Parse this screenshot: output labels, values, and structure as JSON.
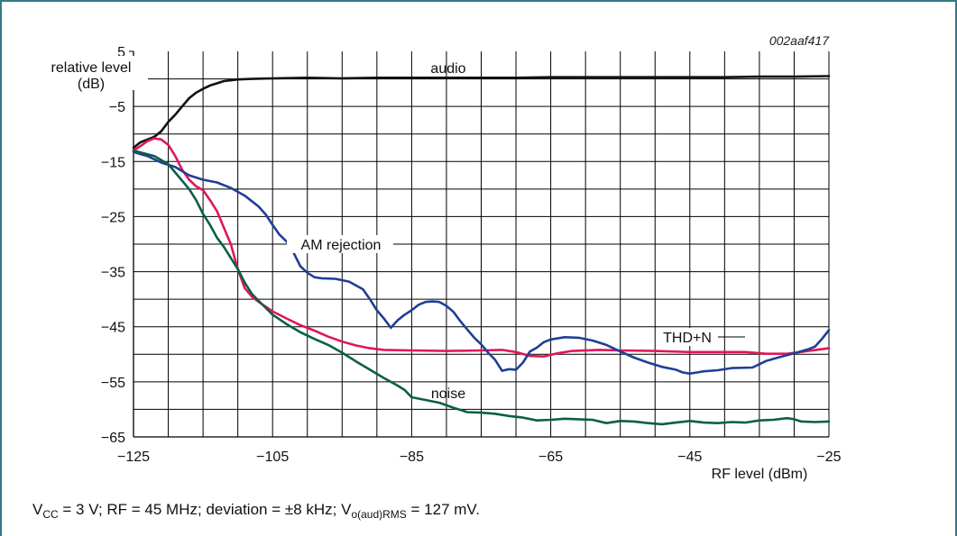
{
  "chart_data": {
    "type": "line",
    "figure_code": "002aaf417",
    "ylabel": "relative level (dB)",
    "ylabel_lines": [
      "relative level",
      "(dB)"
    ],
    "xlabel": "RF level (dBm)",
    "xlim": [
      -125,
      -25
    ],
    "ylim": [
      -65,
      5
    ],
    "x_ticks": [
      -125,
      -105,
      -85,
      -65,
      -45,
      -25
    ],
    "x_tick_labels": [
      "−125",
      "−105",
      "−85",
      "−65",
      "−45",
      "−25"
    ],
    "y_ticks": [
      5,
      -5,
      -15,
      -25,
      -35,
      -45,
      -55,
      -65
    ],
    "y_tick_labels": [
      "5",
      "−5",
      "−15",
      "−25",
      "−35",
      "−45",
      "−55",
      "−65"
    ],
    "grid": true,
    "series": [
      {
        "name": "audio",
        "color": "#111111",
        "points": [
          [
            -125,
            -12.5
          ],
          [
            -124,
            -11.5
          ],
          [
            -122,
            -10.5
          ],
          [
            -121,
            -9.5
          ],
          [
            -120,
            -7.8
          ],
          [
            -119,
            -6.5
          ],
          [
            -118,
            -5
          ],
          [
            -117,
            -3.5
          ],
          [
            -116,
            -2.5
          ],
          [
            -115,
            -1.8
          ],
          [
            -114,
            -1.2
          ],
          [
            -113,
            -0.8
          ],
          [
            -112,
            -0.4
          ],
          [
            -110,
            -0.1
          ],
          [
            -108,
            0
          ],
          [
            -105,
            0.1
          ],
          [
            -100,
            0.2
          ],
          [
            -95,
            0.1
          ],
          [
            -90,
            0.2
          ],
          [
            -85,
            0.2
          ],
          [
            -80,
            0.2
          ],
          [
            -75,
            0.2
          ],
          [
            -70,
            0.2
          ],
          [
            -65,
            0.3
          ],
          [
            -60,
            0.3
          ],
          [
            -55,
            0.3
          ],
          [
            -50,
            0.3
          ],
          [
            -45,
            0.3
          ],
          [
            -40,
            0.3
          ],
          [
            -35,
            0.4
          ],
          [
            -30,
            0.4
          ],
          [
            -25,
            0.5
          ]
        ]
      },
      {
        "name": "THD+N",
        "color": "#e0165b",
        "points": [
          [
            -125,
            -13
          ],
          [
            -124,
            -12.2
          ],
          [
            -123,
            -11.3
          ],
          [
            -122,
            -10.8
          ],
          [
            -121,
            -11
          ],
          [
            -120,
            -12
          ],
          [
            -119,
            -14
          ],
          [
            -118,
            -16.5
          ],
          [
            -117,
            -18.3
          ],
          [
            -116,
            -19.5
          ],
          [
            -115,
            -20.2
          ],
          [
            -114,
            -22
          ],
          [
            -113,
            -24
          ],
          [
            -112,
            -27
          ],
          [
            -111,
            -30
          ],
          [
            -110,
            -34.5
          ],
          [
            -109,
            -38
          ],
          [
            -108,
            -39.5
          ],
          [
            -107,
            -40.5
          ],
          [
            -105,
            -42.2
          ],
          [
            -103,
            -43.5
          ],
          [
            -101,
            -44.7
          ],
          [
            -99,
            -45.7
          ],
          [
            -97,
            -46.8
          ],
          [
            -95,
            -47.7
          ],
          [
            -93,
            -48.4
          ],
          [
            -91,
            -48.9
          ],
          [
            -89,
            -49.2
          ],
          [
            -85,
            -49.3
          ],
          [
            -80,
            -49.4
          ],
          [
            -75,
            -49.3
          ],
          [
            -72,
            -49.2
          ],
          [
            -70,
            -49.6
          ],
          [
            -68,
            -50.3
          ],
          [
            -66,
            -50.4
          ],
          [
            -64,
            -49.8
          ],
          [
            -62,
            -49.4
          ],
          [
            -58,
            -49.2
          ],
          [
            -55,
            -49.3
          ],
          [
            -50,
            -49.4
          ],
          [
            -45,
            -49.6
          ],
          [
            -40,
            -49.6
          ],
          [
            -37,
            -49.6
          ],
          [
            -34,
            -49.9
          ],
          [
            -31,
            -49.9
          ],
          [
            -28,
            -49.4
          ],
          [
            -25,
            -48.9
          ]
        ]
      },
      {
        "name": "AM rejection",
        "color": "#1f3f96",
        "points": [
          [
            -125,
            -13.3
          ],
          [
            -123,
            -14
          ],
          [
            -121,
            -15.2
          ],
          [
            -119,
            -16
          ],
          [
            -117,
            -17.5
          ],
          [
            -115,
            -18.3
          ],
          [
            -113,
            -18.8
          ],
          [
            -111,
            -19.8
          ],
          [
            -109,
            -21.2
          ],
          [
            -107,
            -23.2
          ],
          [
            -106,
            -24.6
          ],
          [
            -105,
            -26.5
          ],
          [
            -104,
            -28.3
          ],
          [
            -103,
            -29.5
          ],
          [
            -102,
            -31.5
          ],
          [
            -101,
            -34
          ],
          [
            -100,
            -35.2
          ],
          [
            -99,
            -36
          ],
          [
            -98,
            -36.2
          ],
          [
            -96,
            -36.3
          ],
          [
            -94,
            -36.8
          ],
          [
            -92,
            -38.2
          ],
          [
            -91,
            -40
          ],
          [
            -90,
            -42
          ],
          [
            -89,
            -43.5
          ],
          [
            -88,
            -45.2
          ],
          [
            -87,
            -43.8
          ],
          [
            -86,
            -42.8
          ],
          [
            -85,
            -42
          ],
          [
            -84,
            -41
          ],
          [
            -83,
            -40.5
          ],
          [
            -82,
            -40.4
          ],
          [
            -81,
            -40.5
          ],
          [
            -80,
            -41.2
          ],
          [
            -79,
            -42.3
          ],
          [
            -78,
            -44
          ],
          [
            -77,
            -45.5
          ],
          [
            -76,
            -47
          ],
          [
            -75,
            -48.2
          ],
          [
            -74,
            -49.7
          ],
          [
            -73,
            -51
          ],
          [
            -72,
            -53
          ],
          [
            -71,
            -52.7
          ],
          [
            -70,
            -52.8
          ],
          [
            -69,
            -51.5
          ],
          [
            -68,
            -49.5
          ],
          [
            -67,
            -48.8
          ],
          [
            -66,
            -47.8
          ],
          [
            -65,
            -47.3
          ],
          [
            -63,
            -46.9
          ],
          [
            -61,
            -47
          ],
          [
            -59,
            -47.5
          ],
          [
            -57,
            -48.3
          ],
          [
            -55,
            -49.5
          ],
          [
            -53,
            -50.6
          ],
          [
            -51,
            -51.5
          ],
          [
            -49,
            -52.3
          ],
          [
            -47,
            -52.8
          ],
          [
            -46,
            -53.3
          ],
          [
            -45,
            -53.5
          ],
          [
            -44,
            -53.3
          ],
          [
            -43,
            -53.1
          ],
          [
            -41,
            -52.9
          ],
          [
            -39,
            -52.5
          ],
          [
            -36,
            -52.4
          ],
          [
            -35,
            -51.8
          ],
          [
            -34,
            -51.2
          ],
          [
            -32,
            -50.5
          ],
          [
            -30,
            -49.8
          ],
          [
            -28,
            -49.1
          ],
          [
            -27,
            -48.6
          ],
          [
            -26,
            -47.2
          ],
          [
            -25,
            -45.6
          ]
        ]
      },
      {
        "name": "noise",
        "color": "#0b5e4a",
        "points": [
          [
            -125,
            -13
          ],
          [
            -122,
            -14
          ],
          [
            -120,
            -15.5
          ],
          [
            -119,
            -17
          ],
          [
            -118,
            -18.5
          ],
          [
            -117,
            -20
          ],
          [
            -116,
            -22
          ],
          [
            -115,
            -24.5
          ],
          [
            -114,
            -26.5
          ],
          [
            -113,
            -28.8
          ],
          [
            -112,
            -30.5
          ],
          [
            -111,
            -32.5
          ],
          [
            -110,
            -34.5
          ],
          [
            -109,
            -37
          ],
          [
            -108,
            -39
          ],
          [
            -107,
            -40.3
          ],
          [
            -105,
            -42.8
          ],
          [
            -103,
            -44.5
          ],
          [
            -101,
            -46
          ],
          [
            -99,
            -47.2
          ],
          [
            -97,
            -48.3
          ],
          [
            -95,
            -49.7
          ],
          [
            -93,
            -51.3
          ],
          [
            -91,
            -52.8
          ],
          [
            -89,
            -54.3
          ],
          [
            -87,
            -55.7
          ],
          [
            -86,
            -56.5
          ],
          [
            -85,
            -57.8
          ],
          [
            -83,
            -58.3
          ],
          [
            -81,
            -58.8
          ],
          [
            -79,
            -59.7
          ],
          [
            -77,
            -60.5
          ],
          [
            -75,
            -60.6
          ],
          [
            -73,
            -60.8
          ],
          [
            -71,
            -61.2
          ],
          [
            -69,
            -61.5
          ],
          [
            -67,
            -62
          ],
          [
            -65,
            -61.9
          ],
          [
            -63,
            -61.7
          ],
          [
            -61,
            -61.8
          ],
          [
            -59,
            -61.9
          ],
          [
            -57,
            -62.5
          ],
          [
            -55,
            -62.1
          ],
          [
            -53,
            -62.2
          ],
          [
            -51,
            -62.5
          ],
          [
            -49,
            -62.7
          ],
          [
            -47,
            -62.4
          ],
          [
            -45,
            -62.1
          ],
          [
            -43,
            -62.4
          ],
          [
            -41,
            -62.5
          ],
          [
            -39,
            -62.3
          ],
          [
            -37,
            -62.4
          ],
          [
            -35,
            -62
          ],
          [
            -33,
            -61.9
          ],
          [
            -31,
            -61.6
          ],
          [
            -30,
            -61.8
          ],
          [
            -29,
            -62.2
          ],
          [
            -27,
            -62.3
          ],
          [
            -25,
            -62.2
          ]
        ]
      }
    ],
    "annotations": [
      {
        "text": "audio",
        "series": "audio"
      },
      {
        "text": "AM rejection",
        "series": "AM rejection"
      },
      {
        "text": "THD+N",
        "series": "THD+N"
      },
      {
        "text": "noise",
        "series": "noise"
      }
    ]
  },
  "caption": {
    "vcc_sym": "V",
    "vcc_sub": "CC",
    "part1": " = 3 V; RF = 45 MHz; deviation = ±8 kHz; ",
    "vo_sym": "V",
    "vo_sub": "o(aud)RMS",
    "part2": " = 127 mV."
  },
  "colors": {
    "frame": "#2e7c86",
    "grid": "#000000"
  }
}
